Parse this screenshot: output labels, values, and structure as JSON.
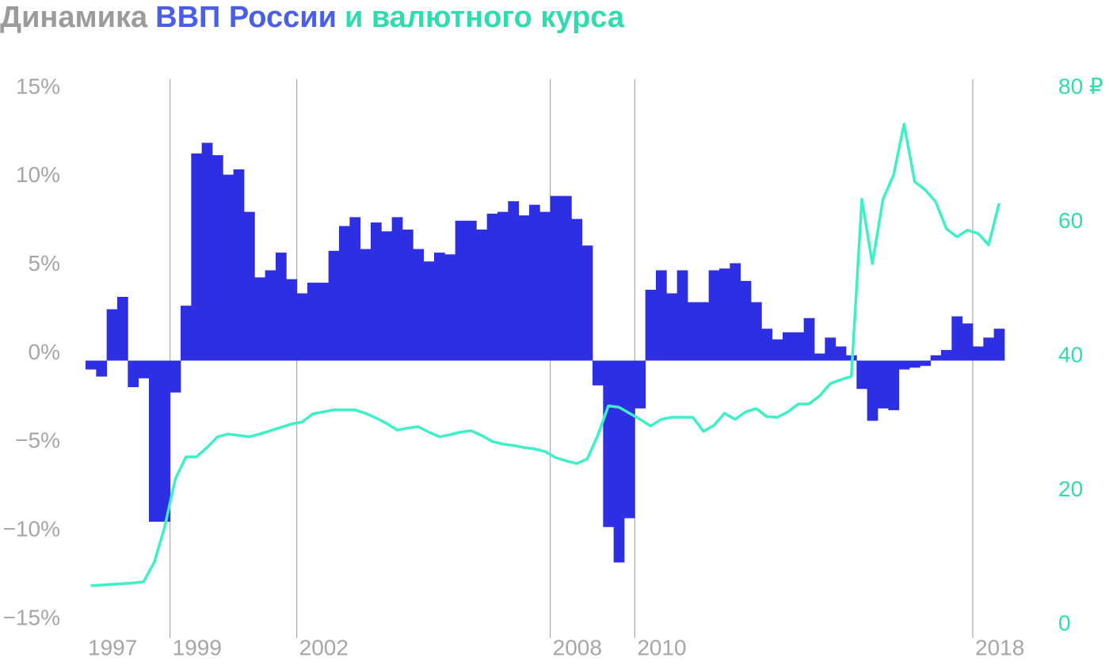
{
  "chart_data": {
    "type": "bar-line",
    "title": [
      {
        "text": "Динамика",
        "color": "#9b9b9b"
      },
      {
        "text": "ВВП России",
        "color": "#4b5ee6"
      },
      {
        "text": "и валютного курса",
        "color": "#2fdcae"
      }
    ],
    "x": [
      1997,
      1997.25,
      1997.5,
      1997.75,
      1998,
      1998.25,
      1998.5,
      1998.75,
      1999,
      1999.25,
      1999.5,
      1999.75,
      2000,
      2000.25,
      2000.5,
      2000.75,
      2001,
      2001.25,
      2001.5,
      2001.75,
      2002,
      2002.25,
      2002.5,
      2002.75,
      2003,
      2003.25,
      2003.5,
      2003.75,
      2004,
      2004.25,
      2004.5,
      2004.75,
      2005,
      2005.25,
      2005.5,
      2005.75,
      2006,
      2006.25,
      2006.5,
      2006.75,
      2007,
      2007.25,
      2007.5,
      2007.75,
      2008,
      2008.25,
      2008.5,
      2008.75,
      2009,
      2009.25,
      2009.5,
      2009.75,
      2010,
      2010.25,
      2010.5,
      2010.75,
      2011,
      2011.25,
      2011.5,
      2011.75,
      2012,
      2012.25,
      2012.5,
      2012.75,
      2013,
      2013.25,
      2013.5,
      2013.75,
      2014,
      2014.25,
      2014.5,
      2014.75,
      2015,
      2015.25,
      2015.5,
      2015.75,
      2016,
      2016.25,
      2016.5,
      2016.75,
      2017,
      2017.25,
      2017.5,
      2017.75,
      2018,
      2018.25,
      2018.5
    ],
    "series": [
      {
        "type": "bar",
        "color": "#2e2fe3",
        "values": [
          -0.5,
          -0.9,
          2.9,
          3.6,
          -1.5,
          -1.0,
          -9.1,
          -9.1,
          -1.8,
          3.1,
          11.7,
          12.3,
          11.6,
          10.5,
          10.8,
          8.4,
          4.7,
          5.1,
          6.1,
          4.6,
          3.8,
          4.4,
          4.4,
          6.2,
          7.6,
          8.1,
          6.3,
          7.8,
          7.3,
          8.1,
          7.4,
          6.3,
          5.6,
          6.1,
          6.0,
          7.9,
          7.9,
          7.4,
          8.3,
          8.4,
          9.0,
          8.2,
          8.8,
          8.4,
          9.3,
          9.3,
          8.0,
          6.5,
          -1.4,
          -9.4,
          -11.4,
          -8.9,
          -2.7,
          4.0,
          5.1,
          3.8,
          5.1,
          3.3,
          3.3,
          5.1,
          5.2,
          5.5,
          4.5,
          3.3,
          1.8,
          1.2,
          1.6,
          1.6,
          2.4,
          0.4,
          1.3,
          0.8,
          0.3,
          -1.6,
          -3.4,
          -2.7,
          -2.8,
          -0.5,
          -0.4,
          -0.3,
          0.3,
          0.6,
          2.5,
          2.1,
          0.8,
          1.3,
          1.8
        ]
      },
      {
        "type": "line",
        "axis": "y2",
        "color": "#3ef0c6",
        "values": [
          5.8,
          5.9,
          6.0,
          6.1,
          6.2,
          6.4,
          9.3,
          14.6,
          21.7,
          25.0,
          25.0,
          26.4,
          28.0,
          28.4,
          28.2,
          28.0,
          28.4,
          28.9,
          29.4,
          29.9,
          30.2,
          31.4,
          31.7,
          32.0,
          32.0,
          32.0,
          31.5,
          30.8,
          30.0,
          29.0,
          29.3,
          29.5,
          28.7,
          28.0,
          28.3,
          28.7,
          28.9,
          28.2,
          27.3,
          26.9,
          26.7,
          26.4,
          26.2,
          25.8,
          24.9,
          24.4,
          24.0,
          24.7,
          28.2,
          32.6,
          32.4,
          31.5,
          30.6,
          29.6,
          30.6,
          30.9,
          30.9,
          30.9,
          28.8,
          29.7,
          31.5,
          30.6,
          31.7,
          32.2,
          31.0,
          30.9,
          31.7,
          32.9,
          32.9,
          34.1,
          35.9,
          36.5,
          37.0,
          63.4,
          53.8,
          63.4,
          67.0,
          74.6,
          66.0,
          64.8,
          63.0,
          59.0,
          57.8,
          58.8,
          58.3,
          56.6,
          62.8
        ]
      }
    ],
    "xlim": [
      1997,
      2018.75
    ],
    "xticks": [
      1997,
      1999,
      2002,
      2008,
      2010,
      2018
    ],
    "ylim": [
      -15,
      15
    ],
    "yticks": [
      {
        "value": 15,
        "label": "15%"
      },
      {
        "value": 10,
        "label": "10%"
      },
      {
        "value": 5,
        "label": "5%"
      },
      {
        "value": 0,
        "label": "0%"
      },
      {
        "value": -5,
        "label": "−5%"
      },
      {
        "value": -10,
        "label": "−10%"
      },
      {
        "value": -15,
        "label": "−15%"
      }
    ],
    "y2lim": [
      0,
      80
    ],
    "y2ticks": [
      {
        "value": 80,
        "label": "80 ₽"
      },
      60,
      40,
      20,
      0
    ],
    "y2color": "#2fdcae",
    "grid": "x"
  }
}
